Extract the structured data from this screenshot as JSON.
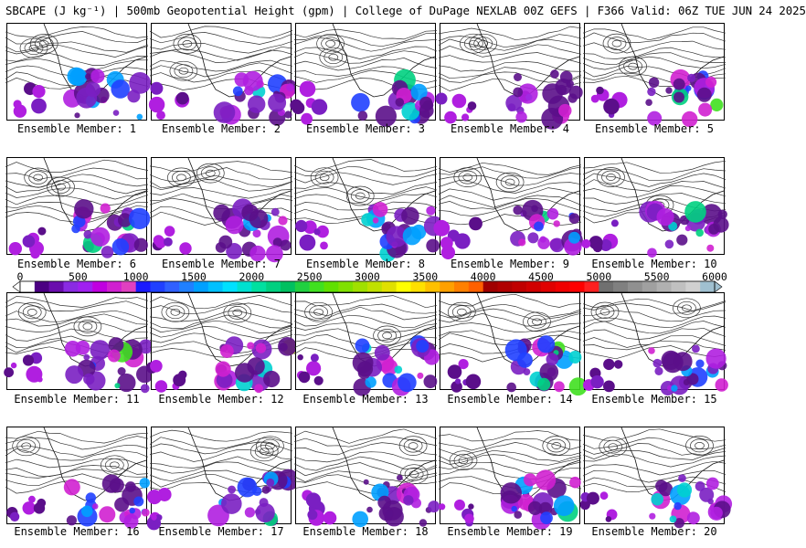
{
  "header": {
    "title": "SBCAPE (J kg⁻¹) | 500mb Geopotential Height (gpm) | College of DuPage NEXLAB 00Z GEFS | F366 Valid: 06Z TUE JUN 24 2025"
  },
  "panels": [
    {
      "caption": "Ensemble Member: 1"
    },
    {
      "caption": "Ensemble Member: 2"
    },
    {
      "caption": "Ensemble Member: 3"
    },
    {
      "caption": "Ensemble Member: 4"
    },
    {
      "caption": "Ensemble Member: 5"
    },
    {
      "caption": "Ensemble Member: 6"
    },
    {
      "caption": "Ensemble Member: 7"
    },
    {
      "caption": "Ensemble Member: 8"
    },
    {
      "caption": "Ensemble Member: 9"
    },
    {
      "caption": "Ensemble Member: 10"
    },
    {
      "caption": "Ensemble Member: 11"
    },
    {
      "caption": "Ensemble Member: 12"
    },
    {
      "caption": "Ensemble Member: 13"
    },
    {
      "caption": "Ensemble Member: 14"
    },
    {
      "caption": "Ensemble Member: 15"
    },
    {
      "caption": "Ensemble Member: 16"
    },
    {
      "caption": "Ensemble Member: 17"
    },
    {
      "caption": "Ensemble Member: 18"
    },
    {
      "caption": "Ensemble Member: 19"
    },
    {
      "caption": "Ensemble Member: 20"
    }
  ],
  "colorbar": {
    "min": 0,
    "max": 6000,
    "labels": [
      "0",
      "500",
      "1000",
      "1500",
      "2000",
      "2500",
      "3000",
      "3500",
      "4000",
      "4500",
      "5000",
      "5500",
      "6000"
    ],
    "colors": [
      "#ffffff",
      "#4b0082",
      "#6a0dad",
      "#8a2be2",
      "#a020f0",
      "#c000e0",
      "#d020d0",
      "#e040c0",
      "#1a1aff",
      "#2040ff",
      "#3060ff",
      "#2080ff",
      "#00a0ff",
      "#00c0ff",
      "#00e0ff",
      "#00e0d0",
      "#00e0a0",
      "#00d080",
      "#00c060",
      "#20d040",
      "#40e020",
      "#60e000",
      "#80e000",
      "#a0e000",
      "#c0e000",
      "#e0e000",
      "#ffff00",
      "#ffe000",
      "#ffc000",
      "#ffa000",
      "#ff8000",
      "#ff6000",
      "#a00000",
      "#b00000",
      "#c00000",
      "#d00000",
      "#e00000",
      "#f00000",
      "#ff0000",
      "#ff2020",
      "#707070",
      "#808080",
      "#909090",
      "#a0a0a0",
      "#b0b0b0",
      "#c0c0c0",
      "#d0d0d0",
      "#a0c0d0"
    ]
  },
  "cape_palette": [
    "#5b0f8a",
    "#7a1fc2",
    "#b01fe0",
    "#d020d0",
    "#2040ff",
    "#00a0ff",
    "#00d0d0",
    "#00d080",
    "#40e020",
    "#c0e000"
  ]
}
